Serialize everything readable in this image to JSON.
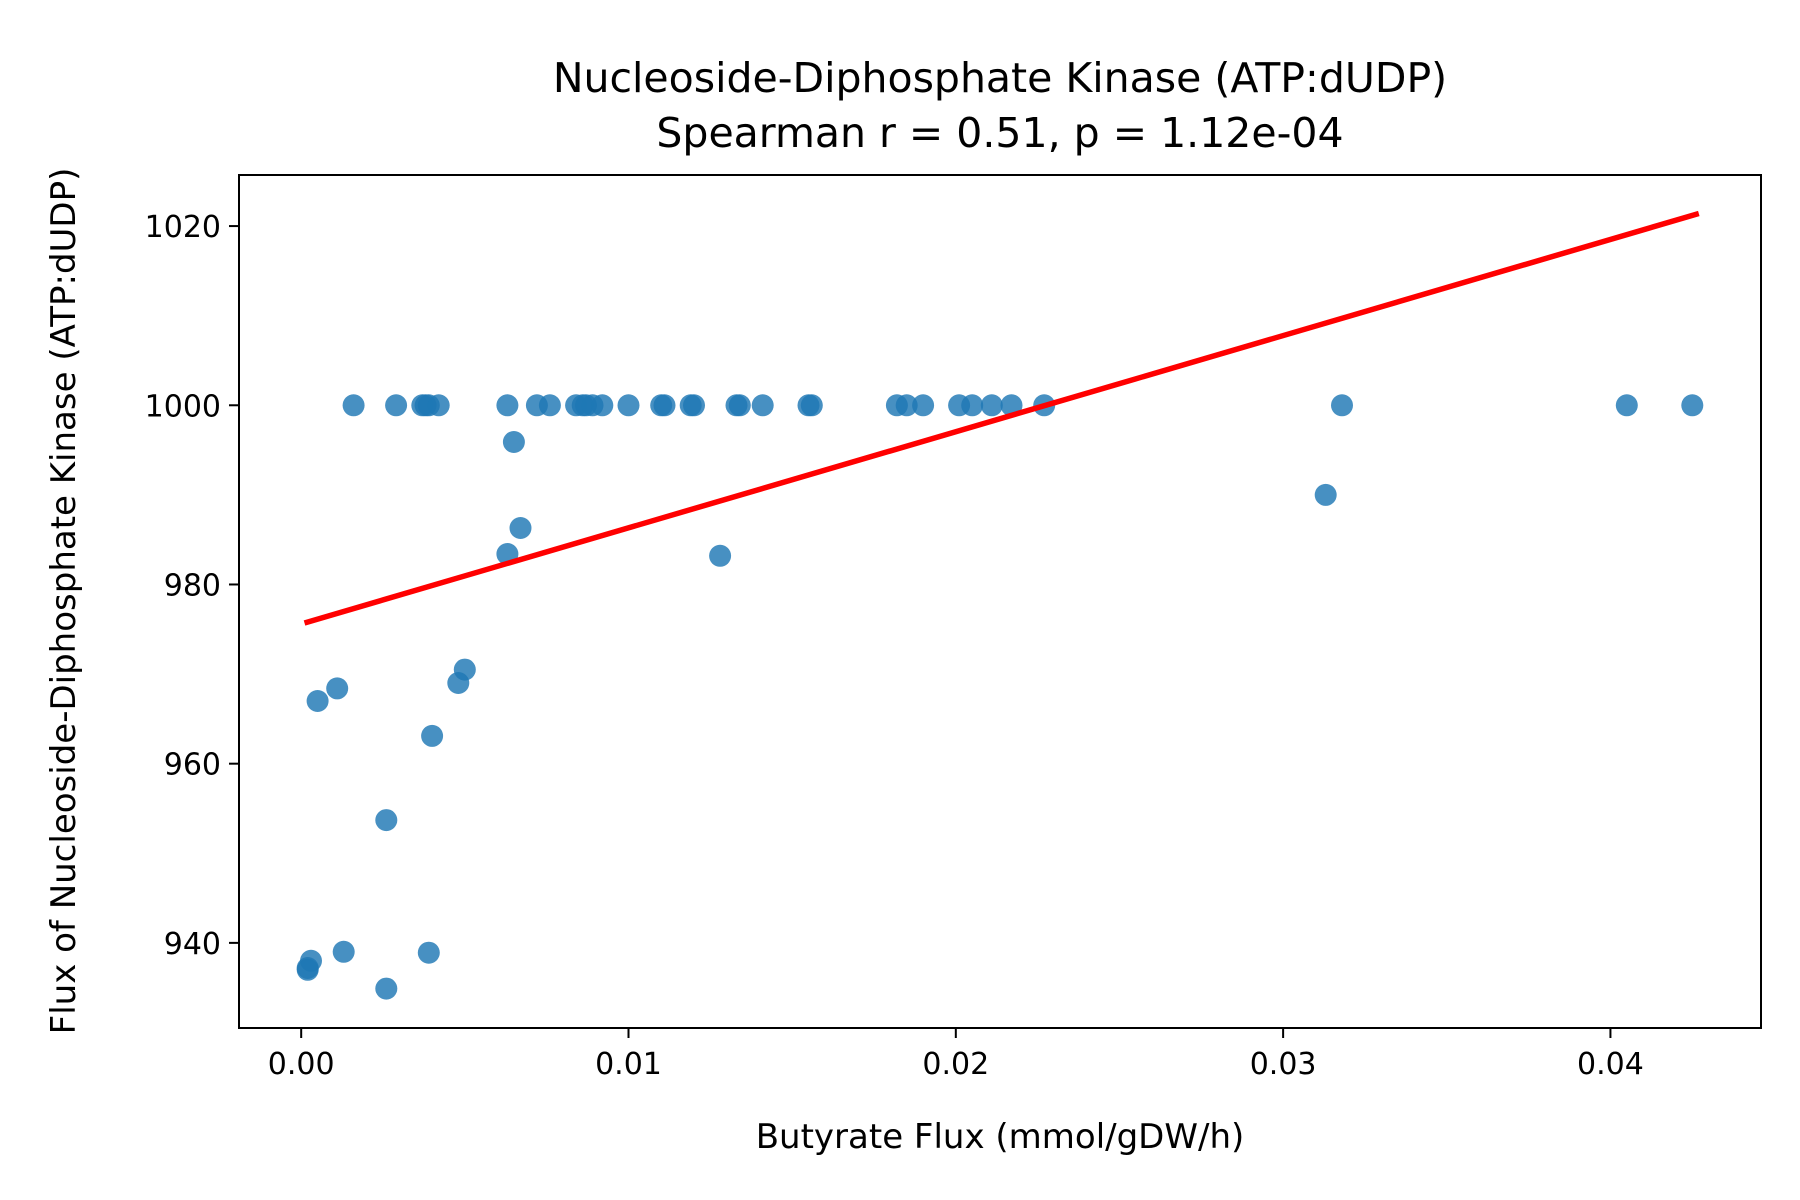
{
  "chart_data": {
    "type": "scatter",
    "title": [
      "Nucleoside-Diphosphate Kinase (ATP:dUDP)",
      "Spearman r = 0.51, p = 1.12e-04"
    ],
    "xlabel": "Butyrate Flux (mmol/gDW/h)",
    "ylabel": "Flux of Nucleoside-Diphosphate Kinase (ATP:dUDP)",
    "xlim": [
      -0.0019,
      0.0446
    ],
    "ylim": [
      930.5,
      1025.7
    ],
    "xticks": [
      0.0,
      0.01,
      0.02,
      0.03,
      0.04
    ],
    "xtick_labels": [
      "0.00",
      "0.01",
      "0.02",
      "0.03",
      "0.04"
    ],
    "yticks": [
      940,
      960,
      980,
      1000,
      1020
    ],
    "ytick_labels": [
      "940",
      "960",
      "980",
      "1000",
      "1020"
    ],
    "grid": false,
    "point_color": "#1f77b4",
    "line_color": "#ff0000",
    "series": [
      {
        "name": "samples",
        "points": [
          [
            0.0016,
            1000
          ],
          [
            0.0029,
            1000
          ],
          [
            0.0037,
            1000
          ],
          [
            0.0038,
            1000
          ],
          [
            0.0039,
            1000
          ],
          [
            0.0042,
            1000
          ],
          [
            0.0063,
            1000
          ],
          [
            0.0072,
            1000
          ],
          [
            0.0076,
            1000
          ],
          [
            0.0084,
            1000
          ],
          [
            0.0086,
            1000
          ],
          [
            0.0087,
            1000
          ],
          [
            0.0089,
            1000
          ],
          [
            0.0092,
            1000
          ],
          [
            0.01,
            1000
          ],
          [
            0.011,
            1000
          ],
          [
            0.0111,
            1000
          ],
          [
            0.0119,
            1000
          ],
          [
            0.012,
            1000
          ],
          [
            0.0133,
            1000
          ],
          [
            0.0134,
            1000
          ],
          [
            0.0141,
            1000
          ],
          [
            0.0155,
            1000
          ],
          [
            0.0156,
            1000
          ],
          [
            0.0182,
            1000
          ],
          [
            0.0185,
            1000
          ],
          [
            0.019,
            1000
          ],
          [
            0.0201,
            1000
          ],
          [
            0.0205,
            1000
          ],
          [
            0.0211,
            1000
          ],
          [
            0.0217,
            1000
          ],
          [
            0.0227,
            1000
          ],
          [
            0.0318,
            1000
          ],
          [
            0.0405,
            1000
          ],
          [
            0.0425,
            1000
          ],
          [
            0.0065,
            995.9
          ],
          [
            0.0067,
            986.3
          ],
          [
            0.0063,
            983.4
          ],
          [
            0.0128,
            983.2
          ],
          [
            0.0313,
            990.0
          ],
          [
            0.005,
            970.5
          ],
          [
            0.0048,
            969.0
          ],
          [
            0.0011,
            968.4
          ],
          [
            0.0005,
            967.0
          ],
          [
            0.004,
            963.1
          ],
          [
            0.0026,
            953.7
          ],
          [
            0.0003,
            938.0
          ],
          [
            0.0002,
            937.2
          ],
          [
            0.0002,
            937.0
          ],
          [
            0.0013,
            939.0
          ],
          [
            0.0039,
            938.9
          ],
          [
            0.0026,
            934.9
          ]
        ]
      },
      {
        "name": "trend",
        "kind": "line",
        "points": [
          [
            0.0001,
            975.7
          ],
          [
            0.0427,
            1021.4
          ]
        ]
      }
    ]
  }
}
